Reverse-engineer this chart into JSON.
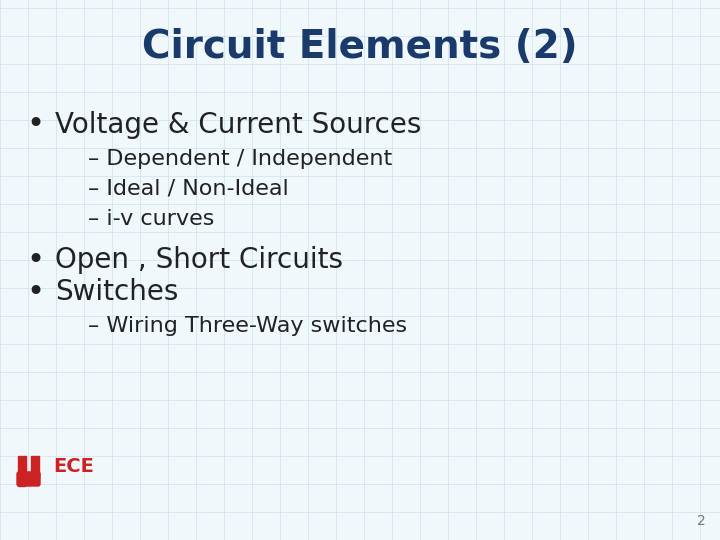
{
  "title": "Circuit Elements (2)",
  "title_color": "#1a3a6b",
  "title_fontsize": 28,
  "background_color": "#f0f8fc",
  "grid_color": "#c5dce8",
  "bullet1": "Voltage & Current Sources",
  "sub1a": "– Dependent / Independent",
  "sub1b": "– Ideal / Non-Ideal",
  "sub1c": "– i-v curves",
  "bullet2": "Open , Short Circuits",
  "bullet3": "Switches",
  "sub3a": "– Wiring Three-Way switches",
  "bullet_color": "#222222",
  "bullet_fontsize": 20,
  "sub_fontsize": 16,
  "sub_color": "#222222",
  "page_number": "2",
  "logo_color": "#cc2222",
  "logo_text": "ECE"
}
